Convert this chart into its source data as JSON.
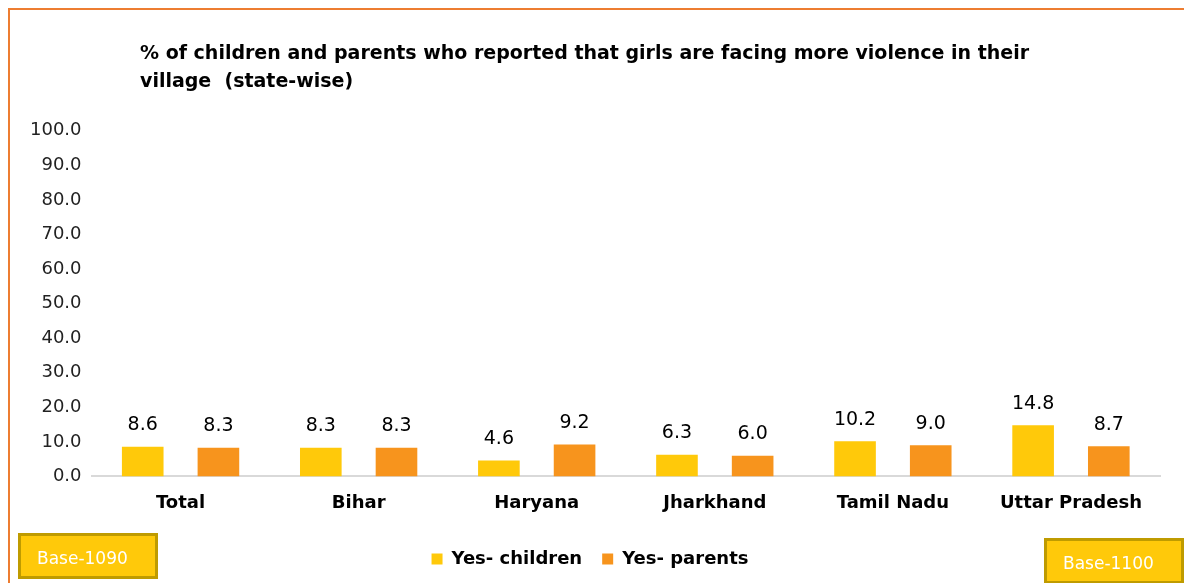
{
  "chart_data": {
    "type": "bar",
    "title": "% of children and parents who reported that girls are facing more violence in their village  (state-wise)",
    "categories": [
      "Total",
      "Bihar",
      "Haryana",
      "Jharkhand",
      "Tamil Nadu",
      "Uttar Pradesh"
    ],
    "series": [
      {
        "name": "Yes- children",
        "color": "#ffc90a",
        "values": [
          8.6,
          8.3,
          4.6,
          6.3,
          10.2,
          14.8
        ],
        "value_labels": [
          "8.6",
          "8.3",
          "4.6",
          "6.3",
          "10.2",
          "14.8"
        ]
      },
      {
        "name": "Yes- parents",
        "color": "#f7941d",
        "values": [
          8.3,
          8.3,
          9.2,
          6.0,
          9.0,
          8.7
        ],
        "value_labels": [
          "8.3",
          "8.3",
          "9.2",
          "6.0",
          "9.0",
          "8.7"
        ]
      }
    ],
    "ylim": [
      0,
      100
    ],
    "yticks": [
      {
        "value": 0,
        "label": "0.0"
      },
      {
        "value": 10,
        "label": "10.0"
      },
      {
        "value": 20,
        "label": "20.0"
      },
      {
        "value": 30,
        "label": "30.0"
      },
      {
        "value": 40,
        "label": "40.0"
      },
      {
        "value": 50,
        "label": "50.0"
      },
      {
        "value": 60,
        "label": "60.0"
      },
      {
        "value": 70,
        "label": "70.0"
      },
      {
        "value": 80,
        "label": "80.0"
      },
      {
        "value": 90,
        "label": "90.0"
      },
      {
        "value": 100,
        "label": "100.0"
      }
    ],
    "grid": false,
    "legend": "bottom",
    "annotations": [
      "Base-1090",
      "Base-1100"
    ]
  }
}
